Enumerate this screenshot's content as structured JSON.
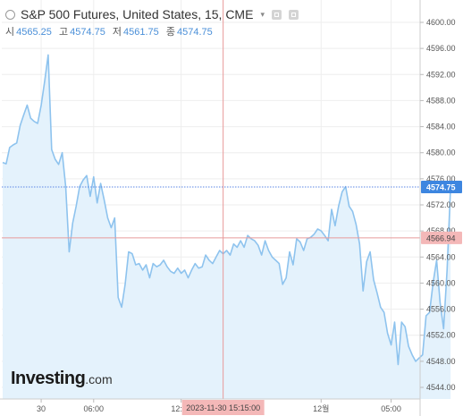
{
  "header": {
    "title": "S&P 500 Futures, United States, 15, CME",
    "ohlc": [
      {
        "key": "시",
        "value": "4565.25"
      },
      {
        "key": "고",
        "value": "4574.75"
      },
      {
        "key": "저",
        "value": "4561.75"
      },
      {
        "key": "종",
        "value": "4574.75"
      }
    ]
  },
  "logo": {
    "main": "Investing",
    "suffix": ".com"
  },
  "colors": {
    "line": "#8ec3ee",
    "fill": "#e4f2fc",
    "last_price_line": "#5b86e5",
    "last_price_tag": "#3d86e0",
    "crosshair": "#e89a9a",
    "crosshair_tag": "#f4b8b8",
    "grid": "#eeeeee"
  },
  "chart_data": {
    "type": "area",
    "ylim": [
      4542,
      4602
    ],
    "y_ticks": [
      4544,
      4548,
      4552,
      4556,
      4560,
      4564,
      4568,
      4572,
      4576,
      4580,
      4584,
      4588,
      4592,
      4596,
      4600
    ],
    "x_ticks": [
      {
        "label": "30",
        "i": 11
      },
      {
        "label": "06:00",
        "i": 26
      },
      {
        "label": "12:00",
        "i": 51
      },
      {
        "label": "12월",
        "i": 91
      },
      {
        "label": "05:00",
        "i": 111
      }
    ],
    "crosshair": {
      "x_label": "2023-11-30 15:15:00",
      "i": 63,
      "y_value": 4566.94,
      "y_label": "4566.94"
    },
    "last_price": {
      "value": 4574.75,
      "label": "4574.75"
    },
    "values": [
      4578.5,
      4578.3,
      4580.8,
      4581.2,
      4581.5,
      4584.2,
      4585.8,
      4587.3,
      4585.3,
      4584.8,
      4584.5,
      4587.3,
      4591.0,
      4595.0,
      4580.5,
      4579.0,
      4578.2,
      4580.0,
      4574.8,
      4564.8,
      4569.2,
      4571.8,
      4574.8,
      4575.8,
      4576.5,
      4573.3,
      4576.3,
      4572.3,
      4575.3,
      4572.8,
      4570.0,
      4568.5,
      4570.0,
      4557.8,
      4556.3,
      4559.8,
      4564.8,
      4564.5,
      4562.8,
      4563.0,
      4562.0,
      4562.8,
      4560.8,
      4563.0,
      4562.5,
      4562.8,
      4563.5,
      4562.5,
      4561.8,
      4561.5,
      4562.3,
      4561.5,
      4562.0,
      4560.8,
      4562.0,
      4563.0,
      4562.3,
      4562.5,
      4564.3,
      4563.5,
      4563.0,
      4564.0,
      4565.0,
      4564.5,
      4565.0,
      4564.3,
      4566.0,
      4565.5,
      4566.5,
      4565.5,
      4567.3,
      4566.8,
      4566.5,
      4565.8,
      4564.3,
      4566.5,
      4565.0,
      4564.0,
      4563.5,
      4563.0,
      4559.8,
      4560.8,
      4564.8,
      4562.8,
      4566.8,
      4566.3,
      4565.0,
      4566.8,
      4567.0,
      4567.5,
      4568.3,
      4568.0,
      4567.3,
      4566.5,
      4571.3,
      4568.8,
      4571.8,
      4574.0,
      4574.8,
      4571.8,
      4571.0,
      4569.0,
      4566.0,
      4558.8,
      4563.3,
      4564.8,
      4560.5,
      4558.5,
      4556.3,
      4555.5,
      4552.3,
      4550.5,
      4554.0,
      4547.5,
      4554.0,
      4553.3,
      4550.3,
      4549.0,
      4548.0,
      4548.5,
      4549.0,
      4555.0,
      4555.5,
      4560.0,
      4563.5,
      4557.0,
      4553.0,
      4562.0,
      4574.75
    ]
  }
}
